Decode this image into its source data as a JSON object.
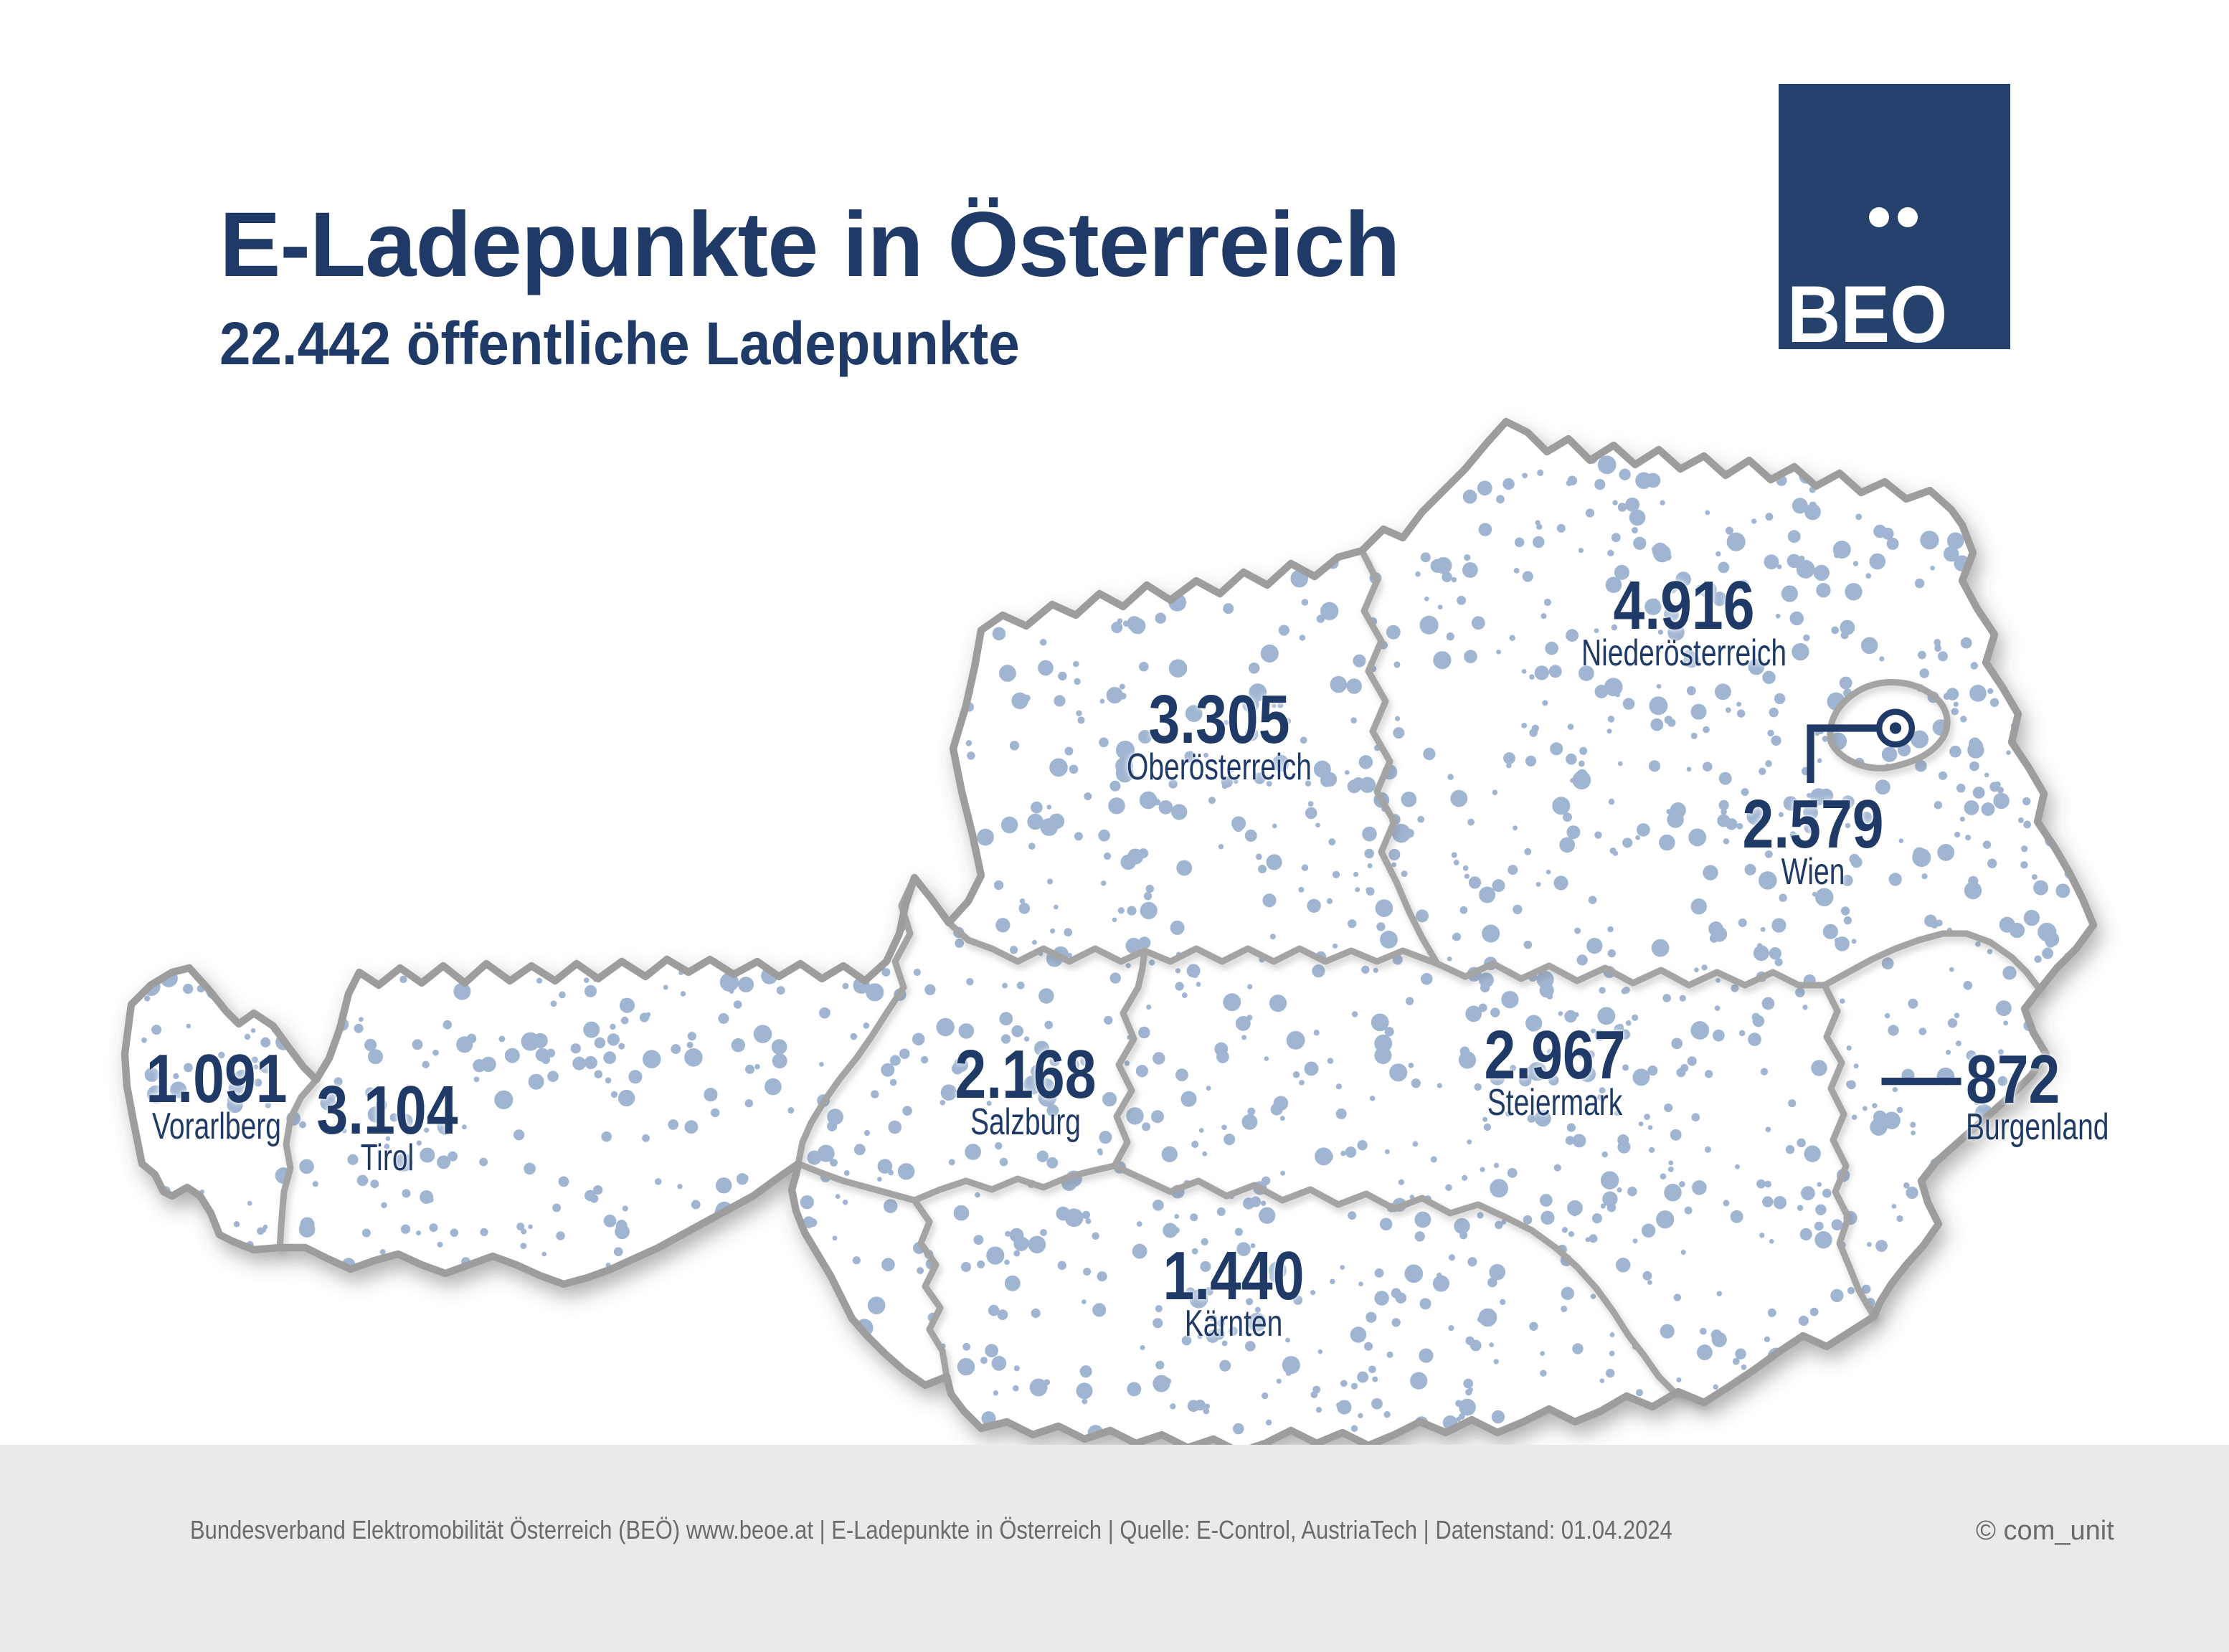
{
  "title": "E-Ladepunkte in Österreich",
  "subtitle": "22.442 öffentliche Ladepunkte",
  "total_label": "22.442",
  "logo": {
    "text": "BEO"
  },
  "map": {
    "country": "Österreich",
    "states": [
      {
        "name": "Vorarlberg",
        "value": "1.091"
      },
      {
        "name": "Tirol",
        "value": "3.104"
      },
      {
        "name": "Salzburg",
        "value": "2.168"
      },
      {
        "name": "Oberösterreich",
        "value": "3.305"
      },
      {
        "name": "Niederösterreich",
        "value": "4.916"
      },
      {
        "name": "Wien",
        "value": "2.579"
      },
      {
        "name": "Steiermark",
        "value": "2.967"
      },
      {
        "name": "Burgenland",
        "value": "872"
      },
      {
        "name": "Kärnten",
        "value": "1.440"
      }
    ]
  },
  "footer": {
    "left": "Bundesverband Elektromobilität Österreich (BEÖ) www.beoe.at | E-Ladepunkte in Österreich | Quelle: E-Control, AustriaTech | Datenstand: 01.04.2024",
    "right": "© com_unit"
  },
  "colors": {
    "navy_text": "#1F3A66",
    "logo_blue": "#24426B",
    "dot_blue": "#9FB5D2",
    "map_border_gray": "#9D9D9D",
    "footer_bg": "#E9EAE9",
    "footer_text": "#6B6B6B"
  }
}
